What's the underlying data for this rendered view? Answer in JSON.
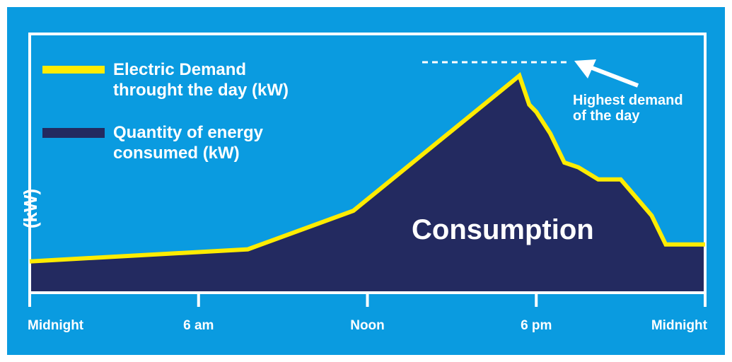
{
  "colors": {
    "background": "#0a9be0",
    "frame": "#ffffff",
    "demand_line": "#ffec00",
    "consumption_area": "#232a60",
    "text": "#ffffff"
  },
  "chart_data": {
    "type": "area",
    "title": "",
    "xlabel": "",
    "ylabel": "(kW)",
    "x_ticks": [
      "Midnight",
      "6 am",
      "Noon",
      "6 pm",
      "Midnight"
    ],
    "xlim": [
      0,
      24
    ],
    "ylim": [
      0,
      100
    ],
    "grid": false,
    "legend_position": "top-left",
    "legend": [
      {
        "label_lines": [
          "Electric Demand",
          "throught the day (kW)"
        ],
        "swatch": "line",
        "color": "#ffec00"
      },
      {
        "label_lines": [
          "Quantity of energy",
          "consumed (kW)"
        ],
        "swatch": "area",
        "color": "#232a60"
      }
    ],
    "series": [
      {
        "name": "Electric Demand throught the day (kW)",
        "x": [
          0,
          7.75,
          11.5,
          17.4,
          17.75,
          18.0,
          18.5,
          19.0,
          19.5,
          20.2,
          21.0,
          22.1,
          22.6,
          24
        ],
        "y": [
          13,
          18,
          34,
          90,
          78,
          75,
          66,
          54,
          52,
          47,
          47,
          32,
          20,
          20
        ]
      }
    ],
    "area_label": "Consumption",
    "annotations": [
      {
        "text_lines": [
          "Highest demand",
          "of the day"
        ],
        "points_to": "peak",
        "peak_value": 90
      }
    ]
  }
}
